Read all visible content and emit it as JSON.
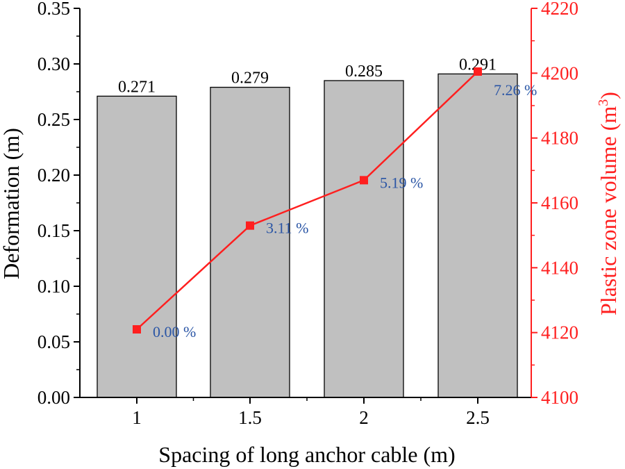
{
  "chart_data": {
    "type": "bar+line",
    "categories": [
      "1",
      "1.5",
      "2",
      "2.5"
    ],
    "xlabel": "Spacing of long anchor cable (m)",
    "bars": {
      "name": "Deformation",
      "values": [
        0.271,
        0.279,
        0.285,
        0.291
      ],
      "labels": [
        "0.271",
        "0.279",
        "0.285",
        "0.291"
      ],
      "ylabel": "Deformation (m)",
      "ylim": [
        0,
        0.35
      ],
      "yticks": [
        0.0,
        0.05,
        0.1,
        0.15,
        0.2,
        0.25,
        0.3,
        0.35
      ],
      "ytick_labels": [
        "0.00",
        "0.05",
        "0.10",
        "0.15",
        "0.20",
        "0.25",
        "0.30",
        "0.35"
      ],
      "color": "#c0c0c0"
    },
    "line": {
      "name": "Plastic zone volume",
      "values": [
        4121,
        4153,
        4167,
        4200.5
      ],
      "labels": [
        "0.00 %",
        "3.11 %",
        "5.19 %",
        "7.26 %"
      ],
      "ylabel": "Plastic zone volume (m",
      "ylabel_sup": "3",
      "ylabel_close": ")",
      "ylim": [
        4100,
        4220
      ],
      "yticks": [
        4100,
        4120,
        4140,
        4160,
        4180,
        4200,
        4220
      ],
      "ytick_labels": [
        "4100",
        "4120",
        "4140",
        "4160",
        "4180",
        "4200",
        "4220"
      ],
      "color": "#ff1f1f",
      "label_color": "#2a55a5"
    }
  }
}
